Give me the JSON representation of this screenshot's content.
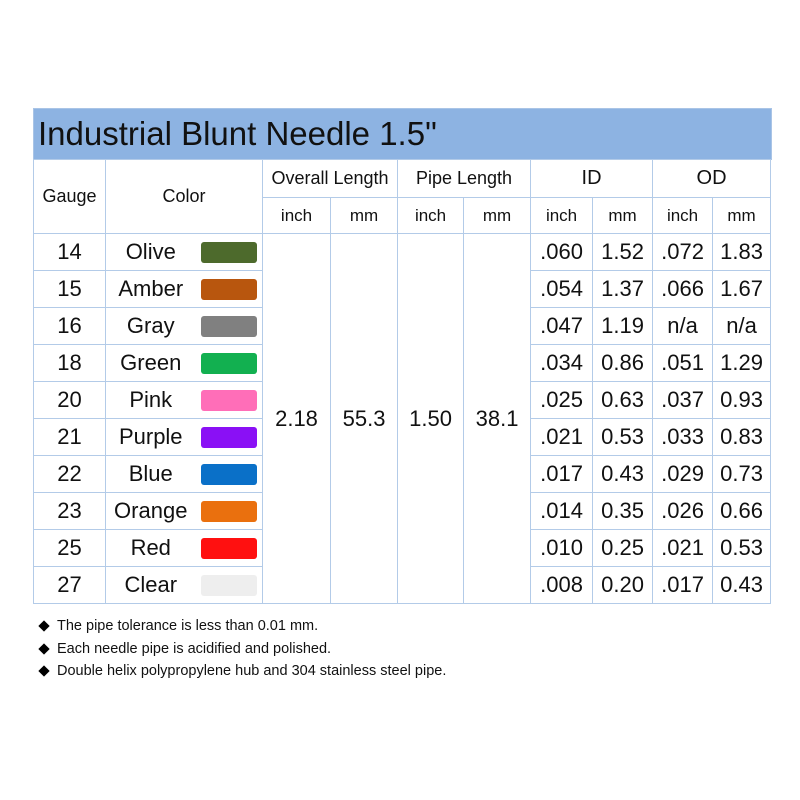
{
  "header": {
    "title": "Industrial Blunt Needle 1.5\""
  },
  "table": {
    "columns": {
      "gauge": "Gauge",
      "color": "Color",
      "overall_length": "Overall Length",
      "pipe_length": "Pipe Length",
      "id": "ID",
      "od": "OD"
    },
    "units": [
      "inch",
      "mm",
      "inch",
      "mm",
      "inch",
      "mm",
      "inch",
      "mm"
    ],
    "overall_length": {
      "inch": "2.18",
      "mm": "55.3"
    },
    "pipe_length": {
      "inch": "1.50",
      "mm": "38.1"
    },
    "rows": [
      {
        "gauge": "14",
        "color": "Olive",
        "swatch": "#4d6a2c",
        "id_inch": ".060",
        "id_mm": "1.52",
        "od_inch": ".072",
        "od_mm": "1.83"
      },
      {
        "gauge": "15",
        "color": "Amber",
        "swatch": "#b8560e",
        "id_inch": ".054",
        "id_mm": "1.37",
        "od_inch": ".066",
        "od_mm": "1.67"
      },
      {
        "gauge": "16",
        "color": "Gray",
        "swatch": "#808080",
        "id_inch": ".047",
        "id_mm": "1.19",
        "od_inch": "n/a",
        "od_mm": "n/a"
      },
      {
        "gauge": "18",
        "color": "Green",
        "swatch": "#12b050",
        "id_inch": ".034",
        "id_mm": "0.86",
        "od_inch": ".051",
        "od_mm": "1.29"
      },
      {
        "gauge": "20",
        "color": "Pink",
        "swatch": "#ff6eb8",
        "id_inch": ".025",
        "id_mm": "0.63",
        "od_inch": ".037",
        "od_mm": "0.93"
      },
      {
        "gauge": "21",
        "color": "Purple",
        "swatch": "#8a10f5",
        "id_inch": ".021",
        "id_mm": "0.53",
        "od_inch": ".033",
        "od_mm": "0.83"
      },
      {
        "gauge": "22",
        "color": "Blue",
        "swatch": "#0a70c8",
        "id_inch": ".017",
        "id_mm": "0.43",
        "od_inch": ".029",
        "od_mm": "0.73"
      },
      {
        "gauge": "23",
        "color": "Orange",
        "swatch": "#ea700e",
        "id_inch": ".014",
        "id_mm": "0.35",
        "od_inch": ".026",
        "od_mm": "0.66"
      },
      {
        "gauge": "25",
        "color": "Red",
        "swatch": "#ff1010",
        "id_inch": ".010",
        "id_mm": "0.25",
        "od_inch": ".021",
        "od_mm": "0.53"
      },
      {
        "gauge": "27",
        "color": "Clear",
        "swatch": "#eeeeee",
        "id_inch": ".008",
        "id_mm": "0.20",
        "od_inch": ".017",
        "od_mm": "0.43"
      }
    ]
  },
  "notes": [
    "The pipe tolerance is less than 0.01 mm.",
    "Each needle pipe is acidified and polished.",
    "Double helix polypropylene hub and 304 stainless steel pipe."
  ]
}
